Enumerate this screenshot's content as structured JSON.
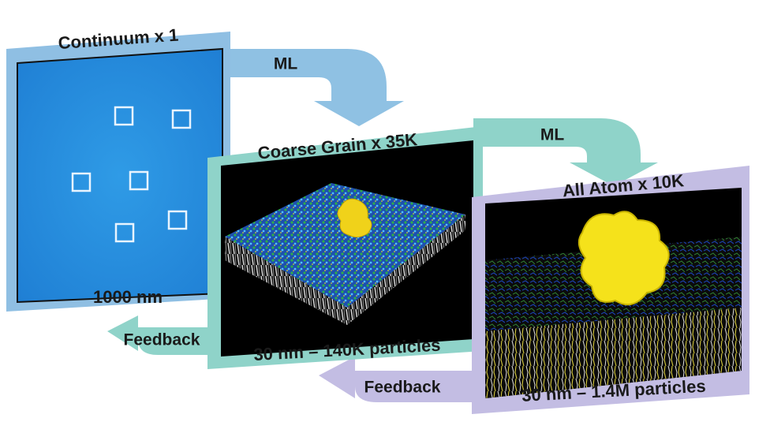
{
  "panels": [
    {
      "title": "Continuum x 1",
      "caption": "1000 nm"
    },
    {
      "title": "Coarse Grain x 35K",
      "caption": "30 nm – 140K particles"
    },
    {
      "title": "All Atom x 10K",
      "caption": "30 nm – 1.4M particles"
    }
  ],
  "arrows": [
    {
      "label": "ML"
    },
    {
      "label": "ML"
    },
    {
      "label": "Feedback"
    },
    {
      "label": "Feedback"
    }
  ]
}
